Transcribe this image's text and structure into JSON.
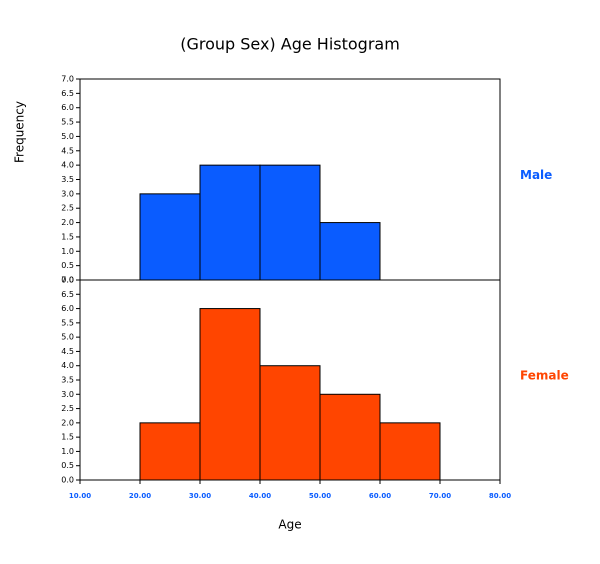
{
  "chart_data": {
    "type": "histogram",
    "title": "(Group Sex) Age Histogram",
    "xlabel": "Age",
    "ylabel": "Frequency",
    "bins": [
      20,
      30,
      40,
      50,
      60,
      70
    ],
    "series": [
      {
        "name": "Male",
        "color": "#0a5cff",
        "values": [
          3,
          4,
          4,
          2,
          0
        ]
      },
      {
        "name": "Female",
        "color": "#ff4500",
        "values": [
          2,
          6,
          4,
          3,
          2
        ]
      }
    ],
    "xlim": [
      10,
      80
    ],
    "xticks": [
      {
        "value": 10,
        "label": "10.00"
      },
      {
        "value": 20,
        "label": "20.00"
      },
      {
        "value": 30,
        "label": "30.00"
      },
      {
        "value": 40,
        "label": "40.00"
      },
      {
        "value": 50,
        "label": "50.00"
      },
      {
        "value": 60,
        "label": "60.00"
      },
      {
        "value": 70,
        "label": "70.00"
      },
      {
        "value": 80,
        "label": "80.00"
      }
    ],
    "ylim": [
      0,
      7
    ],
    "yticks": [
      {
        "value": 0,
        "label": "0.0"
      },
      {
        "value": 0.5,
        "label": "0.5"
      },
      {
        "value": 1,
        "label": "1.0"
      },
      {
        "value": 1.5,
        "label": "1.5"
      },
      {
        "value": 2,
        "label": "2.0"
      },
      {
        "value": 2.5,
        "label": "2.5"
      },
      {
        "value": 3,
        "label": "3.0"
      },
      {
        "value": 3.5,
        "label": "3.5"
      },
      {
        "value": 4,
        "label": "4.0"
      },
      {
        "value": 4.5,
        "label": "4.5"
      },
      {
        "value": 5,
        "label": "5.0"
      },
      {
        "value": 5.5,
        "label": "5.5"
      },
      {
        "value": 6,
        "label": "6.0"
      },
      {
        "value": 6.5,
        "label": "6.5"
      },
      {
        "value": 7,
        "label": "7.0"
      }
    ]
  }
}
